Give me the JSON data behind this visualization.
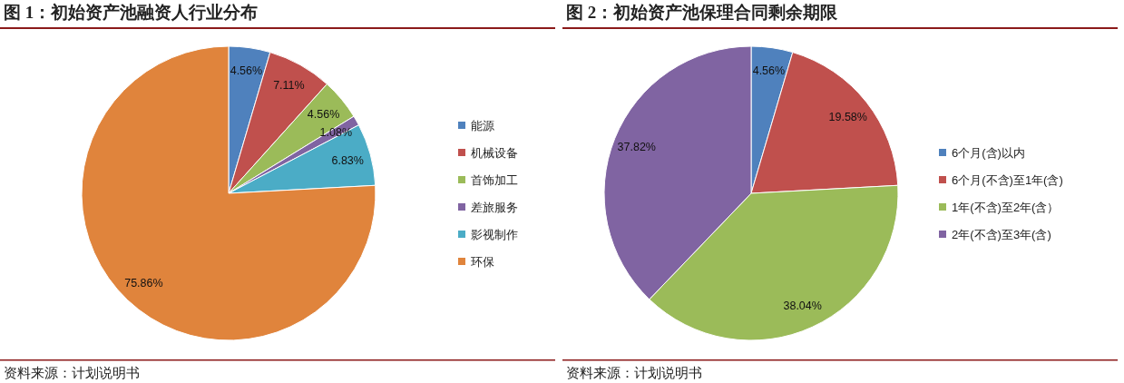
{
  "chart_data": [
    {
      "type": "pie",
      "title": "图 1：初始资产池融资人行业分布",
      "categories": [
        "能源",
        "机械设备",
        "首饰加工",
        "差旅服务",
        "影视制作",
        "环保"
      ],
      "values": [
        4.56,
        7.11,
        4.56,
        1.08,
        6.83,
        75.86
      ],
      "value_labels": [
        "4.56%",
        "7.11%",
        "4.56%",
        "1.08%",
        "6.83%",
        "75.86%"
      ],
      "colors": [
        "#4f81bd",
        "#c0504d",
        "#9bbb59",
        "#8064a2",
        "#4bacc6",
        "#e0843c"
      ],
      "legend": "right",
      "annotations": [
        "资料来源：计划说明书"
      ]
    },
    {
      "type": "pie",
      "title": "图 2：初始资产池保理合同剩余期限",
      "categories": [
        "6个月(含)以内",
        "6个月(不含)至1年(含)",
        "1年(不含)至2年(含）",
        "2年(不含)至3年(含)"
      ],
      "values": [
        4.56,
        19.58,
        38.04,
        37.82
      ],
      "value_labels": [
        "4.56%",
        "19.58%",
        "38.04%",
        "37.82%"
      ],
      "colors": [
        "#4f81bd",
        "#c0504d",
        "#9bbb59",
        "#8064a2"
      ],
      "legend": "right",
      "annotations": [
        "资料来源：计划说明书"
      ]
    }
  ]
}
